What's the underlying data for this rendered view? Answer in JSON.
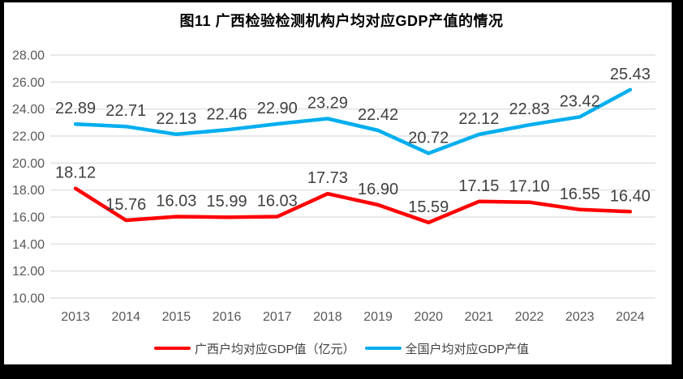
{
  "title": "图11 广西检验检测机构户均对应GDP产值的情况",
  "colors": {
    "background": "#FFFFFF",
    "frame": "#000000",
    "grid": "#D9D9D9",
    "axis_text": "#595959",
    "data_label_text": "#404040",
    "legend_text": "#404040",
    "title_text": "#000000",
    "series_guangxi": "#FF0000",
    "series_national": "#00AEEF"
  },
  "chart_data": {
    "type": "line",
    "title": "图11 广西检验检测机构户均对应GDP产值的情况",
    "categories": [
      "2013",
      "2014",
      "2015",
      "2016",
      "2017",
      "2018",
      "2019",
      "2020",
      "2021",
      "2022",
      "2023",
      "2024"
    ],
    "series": [
      {
        "key": "guangxi",
        "name": "广西户均对应GDP值（亿元）",
        "color": "#FF0000",
        "values": [
          18.12,
          15.76,
          16.03,
          15.99,
          16.03,
          17.73,
          16.9,
          15.59,
          17.15,
          17.1,
          16.55,
          16.4
        ]
      },
      {
        "key": "national",
        "name": "全国户均对应GDP产值",
        "color": "#00AEEF",
        "values": [
          22.89,
          22.71,
          22.13,
          22.46,
          22.9,
          23.29,
          22.42,
          20.72,
          22.12,
          22.83,
          23.42,
          25.43
        ]
      }
    ],
    "ylim": [
      10,
      28
    ],
    "ytick_step": 2,
    "ytick_format": "0.00",
    "xlabel": "",
    "ylabel": "",
    "grid": true,
    "data_labels": true,
    "legend_position": "bottom"
  }
}
